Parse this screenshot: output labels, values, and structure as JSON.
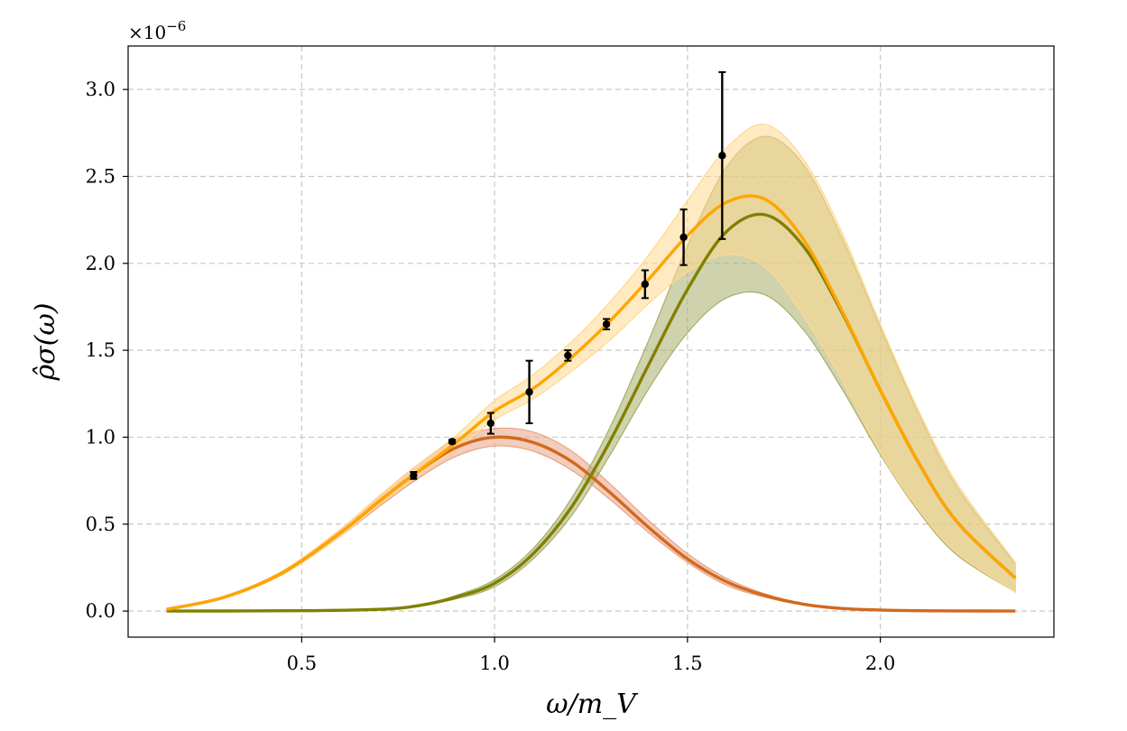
{
  "chart_data": {
    "type": "line",
    "xlabel": "ω/m_V",
    "ylabel": "ρ̂σ(ω)",
    "y_multiplier": "×10",
    "y_multiplier_exp": "−6",
    "xlim": [
      0.05,
      2.45
    ],
    "ylim": [
      -0.15,
      3.25
    ],
    "x_ticks": [
      0.5,
      1.0,
      1.5,
      2.0
    ],
    "x_tick_labels": [
      "0.5",
      "1.0",
      "1.5",
      "2.0"
    ],
    "y_ticks": [
      0.0,
      0.5,
      1.0,
      1.5,
      2.0,
      2.5,
      3.0
    ],
    "y_tick_labels": [
      "0.0",
      "0.5",
      "1.0",
      "1.5",
      "2.0",
      "2.5",
      "3.0"
    ],
    "grid": true,
    "series": [
      {
        "color": "#D2691E",
        "band_color": "#E9A383",
        "x": [
          0.15,
          0.3,
          0.45,
          0.6,
          0.7,
          0.8,
          0.9,
          1.0,
          1.1,
          1.2,
          1.3,
          1.4,
          1.5,
          1.6,
          1.7,
          1.8,
          1.9,
          2.0,
          2.1,
          2.2,
          2.35
        ],
        "y": [
          0.01,
          0.08,
          0.22,
          0.45,
          0.63,
          0.8,
          0.94,
          1.0,
          0.97,
          0.86,
          0.68,
          0.48,
          0.3,
          0.17,
          0.09,
          0.04,
          0.015,
          0.006,
          0.002,
          0.001,
          0.0
        ],
        "lower": [
          0.01,
          0.075,
          0.21,
          0.43,
          0.6,
          0.76,
          0.89,
          0.95,
          0.92,
          0.81,
          0.64,
          0.45,
          0.28,
          0.15,
          0.08,
          0.035,
          0.012,
          0.005,
          0.002,
          0.001,
          0.0
        ],
        "upper": [
          0.012,
          0.085,
          0.23,
          0.47,
          0.66,
          0.84,
          0.99,
          1.05,
          1.03,
          0.92,
          0.73,
          0.52,
          0.33,
          0.19,
          0.1,
          0.045,
          0.018,
          0.007,
          0.003,
          0.001,
          0.0
        ]
      },
      {
        "color": "#808000",
        "band_color": "#A8AE6A",
        "x": [
          0.15,
          0.5,
          0.7,
          0.8,
          0.9,
          1.0,
          1.1,
          1.2,
          1.3,
          1.4,
          1.5,
          1.6,
          1.7,
          1.8,
          1.9,
          2.0,
          2.1,
          2.2,
          2.35
        ],
        "y": [
          0.0,
          0.002,
          0.01,
          0.03,
          0.08,
          0.16,
          0.33,
          0.6,
          0.98,
          1.42,
          1.85,
          2.18,
          2.28,
          2.1,
          1.72,
          1.27,
          0.85,
          0.51,
          0.19
        ],
        "lower": [
          0.0,
          0.002,
          0.01,
          0.03,
          0.07,
          0.14,
          0.3,
          0.55,
          0.9,
          1.28,
          1.6,
          1.8,
          1.82,
          1.62,
          1.28,
          0.9,
          0.57,
          0.32,
          0.11
        ],
        "upper": [
          0.0,
          0.002,
          0.01,
          0.03,
          0.09,
          0.18,
          0.36,
          0.65,
          1.06,
          1.56,
          2.1,
          2.55,
          2.73,
          2.57,
          2.15,
          1.63,
          1.13,
          0.71,
          0.27
        ]
      },
      {
        "color": "#FFA500",
        "band_color": "#FFD890",
        "x": [
          0.15,
          0.3,
          0.45,
          0.6,
          0.7,
          0.8,
          0.9,
          1.0,
          1.1,
          1.2,
          1.3,
          1.4,
          1.5,
          1.6,
          1.7,
          1.8,
          1.9,
          2.0,
          2.1,
          2.2,
          2.35
        ],
        "y": [
          0.01,
          0.08,
          0.22,
          0.45,
          0.63,
          0.8,
          0.97,
          1.15,
          1.28,
          1.46,
          1.67,
          1.91,
          2.16,
          2.35,
          2.37,
          2.14,
          1.73,
          1.27,
          0.85,
          0.51,
          0.19
        ],
        "lower": [
          0.01,
          0.075,
          0.21,
          0.43,
          0.61,
          0.78,
          0.93,
          1.1,
          1.22,
          1.38,
          1.56,
          1.77,
          1.95,
          2.05,
          1.98,
          1.7,
          1.33,
          0.91,
          0.58,
          0.33,
          0.11
        ],
        "upper": [
          0.012,
          0.085,
          0.23,
          0.47,
          0.66,
          0.84,
          1.01,
          1.21,
          1.36,
          1.55,
          1.78,
          2.05,
          2.36,
          2.66,
          2.8,
          2.6,
          2.18,
          1.65,
          1.15,
          0.73,
          0.28
        ]
      }
    ],
    "data_points": {
      "color": "#000000",
      "x": [
        0.79,
        0.89,
        0.99,
        1.09,
        1.19,
        1.29,
        1.39,
        1.49,
        1.59
      ],
      "y": [
        0.78,
        0.975,
        1.08,
        1.26,
        1.47,
        1.65,
        1.88,
        2.15,
        2.62
      ],
      "err": [
        0.02,
        0.01,
        0.06,
        0.18,
        0.03,
        0.03,
        0.08,
        0.16,
        0.48
      ]
    }
  }
}
